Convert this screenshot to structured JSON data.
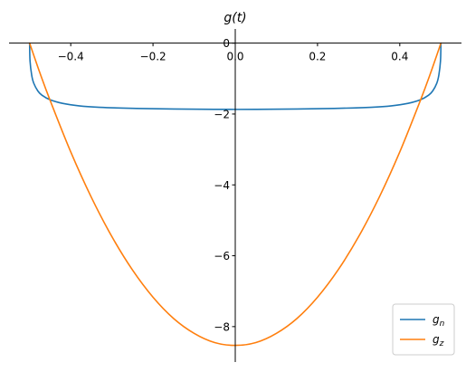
{
  "chart_data": {
    "type": "line",
    "title": "g(t)",
    "xlim": [
      -0.55,
      0.55
    ],
    "ylim": [
      -9.0,
      0.4
    ],
    "x_ticks": [
      -0.4,
      -0.2,
      0.0,
      0.2,
      0.4
    ],
    "x_tick_labels": [
      "−0.4",
      "−0.2",
      "0.0",
      "0.2",
      "0.4"
    ],
    "y_ticks": [
      0,
      -2,
      -4,
      -6,
      -8
    ],
    "y_tick_labels": [
      "0",
      "−2",
      "−4",
      "−6",
      "−8"
    ],
    "grid": false,
    "legend_position": "lower-right",
    "series": [
      {
        "name": "g_n",
        "label_base": "g",
        "label_sub": "n",
        "color": "#1f77b4",
        "x": [
          -0.5,
          -0.499,
          -0.495,
          -0.49,
          -0.48,
          -0.47,
          -0.45,
          -0.42,
          -0.38,
          -0.33,
          -0.25,
          -0.15,
          0.0,
          0.15,
          0.25,
          0.33,
          0.38,
          0.42,
          0.45,
          0.47,
          0.48,
          0.49,
          0.495,
          0.499,
          0.5
        ],
        "y": [
          0.0,
          -0.5,
          -0.9,
          -1.13,
          -1.35,
          -1.47,
          -1.6,
          -1.7,
          -1.77,
          -1.81,
          -1.84,
          -1.86,
          -1.87,
          -1.86,
          -1.84,
          -1.81,
          -1.77,
          -1.7,
          -1.6,
          -1.47,
          -1.35,
          -1.13,
          -0.9,
          -0.5,
          0.0
        ]
      },
      {
        "name": "g_z",
        "label_base": "g",
        "label_sub": "z",
        "color": "#ff7f0e",
        "x": [
          -0.5,
          -0.475,
          -0.45,
          -0.4,
          -0.35,
          -0.3,
          -0.25,
          -0.2,
          -0.15,
          -0.1,
          -0.05,
          0.0,
          0.05,
          0.1,
          0.15,
          0.2,
          0.25,
          0.3,
          0.35,
          0.4,
          0.45,
          0.475,
          0.5
        ],
        "y": [
          0.0,
          -0.84,
          -1.62,
          -3.07,
          -4.35,
          -5.46,
          -6.4,
          -7.17,
          -7.77,
          -8.19,
          -8.45,
          -8.53,
          -8.45,
          -8.19,
          -7.77,
          -7.17,
          -6.4,
          -5.46,
          -4.35,
          -3.07,
          -1.62,
          -0.84,
          0.0
        ]
      }
    ]
  }
}
